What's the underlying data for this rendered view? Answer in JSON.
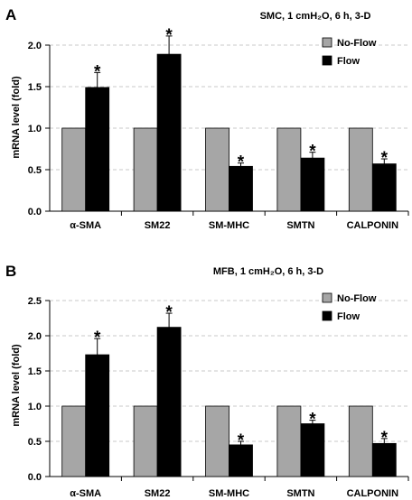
{
  "chart_data": [
    {
      "type": "bar",
      "panel": "A",
      "title": "SMC, 1 cmH₂O, 6 h, 3-D",
      "xlabel": "",
      "ylabel": "mRNA level (fold)",
      "ylim": [
        0,
        2.0
      ],
      "yticks": [
        "0.0",
        "0.5",
        "1.0",
        "1.5",
        "2.0"
      ],
      "ytick_values": [
        0,
        0.5,
        1.0,
        1.5,
        2.0
      ],
      "categories": [
        "α-SMA",
        "SM22",
        "SM-MHC",
        "SMTN",
        "CALPONIN"
      ],
      "series": [
        {
          "name": "No-Flow",
          "color": "#a6a6a6",
          "values": [
            1.0,
            1.0,
            1.0,
            1.0,
            1.0
          ],
          "errors": [
            0,
            0,
            0,
            0,
            0
          ]
        },
        {
          "name": "Flow",
          "color": "#000000",
          "values": [
            1.49,
            1.89,
            0.54,
            0.64,
            0.57
          ],
          "errors": [
            0.18,
            0.22,
            0.04,
            0.07,
            0.06
          ]
        }
      ],
      "significance_marker": "*",
      "significant": [
        true,
        true,
        true,
        true,
        true
      ],
      "legend_position": "top-right",
      "grid": true
    },
    {
      "type": "bar",
      "panel": "B",
      "title": "MFB, 1 cmH₂O, 6 h, 3-D",
      "xlabel": "",
      "ylabel": "mRNA level (fold)",
      "ylim": [
        0,
        2.5
      ],
      "yticks": [
        "0.0",
        "0.5",
        "1.0",
        "1.5",
        "2.0",
        "2.5"
      ],
      "ytick_values": [
        0,
        0.5,
        1.0,
        1.5,
        2.0,
        2.5
      ],
      "categories": [
        "α-SMA",
        "SM22",
        "SM-MHC",
        "SMTN",
        "CALPONIN"
      ],
      "series": [
        {
          "name": "No-Flow",
          "color": "#a6a6a6",
          "values": [
            1.0,
            1.0,
            1.0,
            1.0,
            1.0
          ],
          "errors": [
            0,
            0,
            0,
            0,
            0
          ]
        },
        {
          "name": "Flow",
          "color": "#000000",
          "values": [
            1.73,
            2.12,
            0.45,
            0.75,
            0.47
          ],
          "errors": [
            0.23,
            0.2,
            0.05,
            0.05,
            0.07
          ]
        }
      ],
      "significance_marker": "*",
      "significant": [
        true,
        true,
        true,
        true,
        true
      ],
      "legend_position": "top-right",
      "grid": true
    }
  ]
}
